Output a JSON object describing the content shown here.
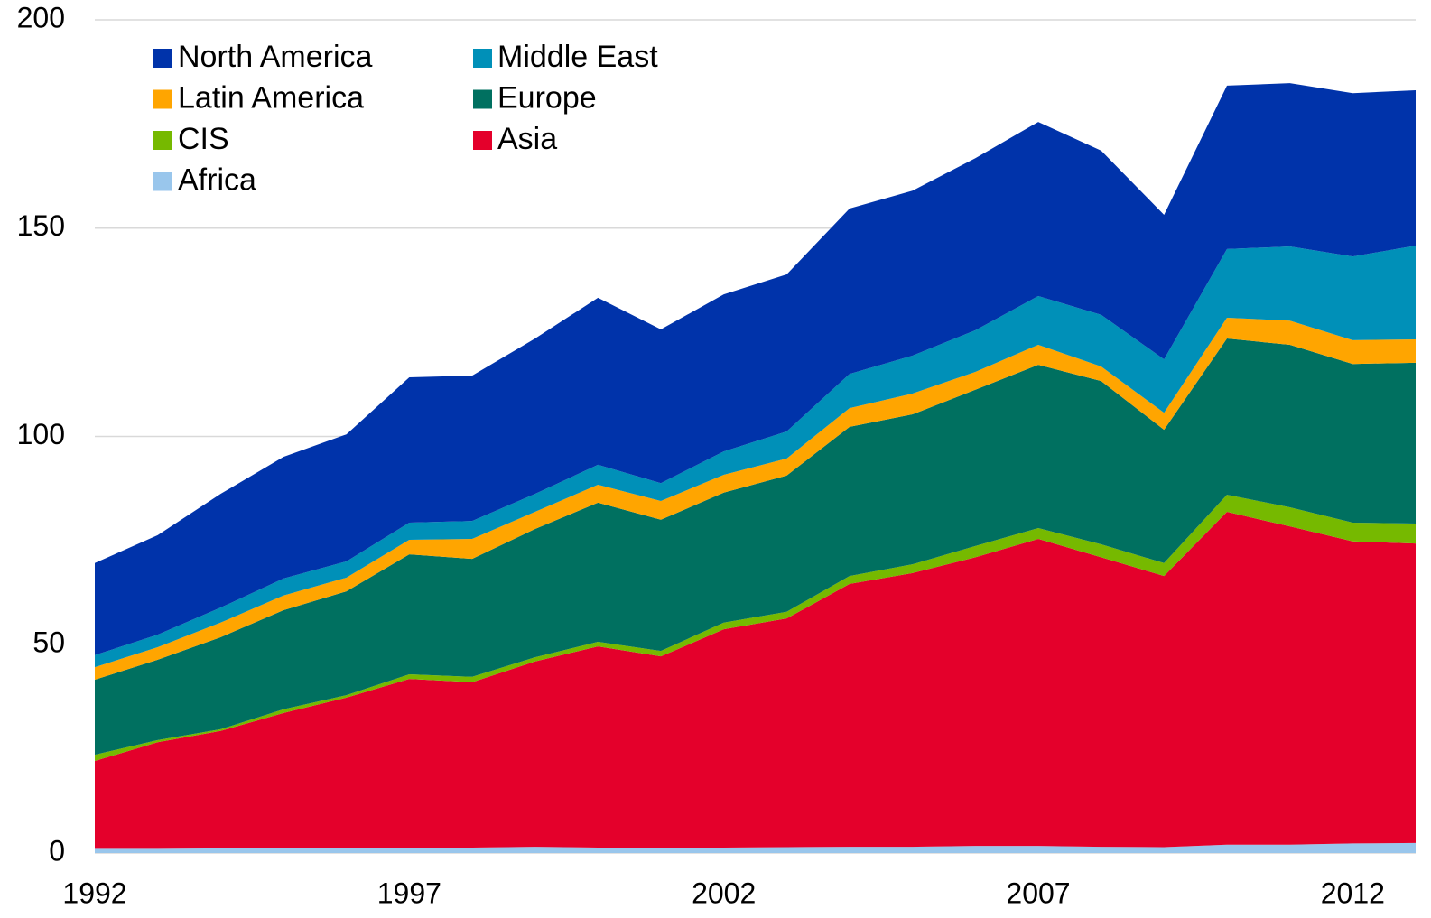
{
  "chart_data": {
    "type": "stacked_area",
    "x": [
      1992,
      1993,
      1994,
      1995,
      1996,
      1997,
      1998,
      1999,
      2000,
      2001,
      2002,
      2003,
      2004,
      2005,
      2006,
      2007,
      2008,
      2009,
      2010,
      2011,
      2012,
      2013
    ],
    "series": [
      {
        "name": "Africa",
        "color": "#99c6ec",
        "values": [
          1.0,
          1.0,
          1.1,
          1.1,
          1.2,
          1.3,
          1.3,
          1.5,
          1.3,
          1.3,
          1.3,
          1.4,
          1.5,
          1.5,
          1.7,
          1.7,
          1.5,
          1.4,
          2.0,
          2.0,
          2.3,
          2.4
        ]
      },
      {
        "name": "Asia",
        "color": "#e4002b",
        "values": [
          21.1,
          25.6,
          28.2,
          32.5,
          36.1,
          40.5,
          39.7,
          44.5,
          48.3,
          45.9,
          52.4,
          54.9,
          63.1,
          65.7,
          69.3,
          73.7,
          69.5,
          65.1,
          79.9,
          76.4,
          72.5,
          71.9
        ]
      },
      {
        "name": "CIS",
        "color": "#76b900",
        "values": [
          1.5,
          0.5,
          0.4,
          0.9,
          0.6,
          1.1,
          1.3,
          1.0,
          1.1,
          1.3,
          1.6,
          1.6,
          1.9,
          2.1,
          2.7,
          2.6,
          3.1,
          3.1,
          4.1,
          4.6,
          4.5,
          4.8
        ]
      },
      {
        "name": "Europe",
        "color": "#007060",
        "values": [
          18.0,
          19.3,
          22.1,
          23.8,
          24.9,
          28.8,
          28.3,
          30.8,
          33.4,
          31.5,
          31.2,
          32.7,
          35.8,
          36.0,
          37.5,
          39.2,
          39.2,
          32.0,
          37.5,
          39.0,
          38.1,
          38.6
        ]
      },
      {
        "name": "Latin America",
        "color": "#ffa500",
        "values": [
          3.0,
          3.0,
          3.5,
          3.5,
          3.3,
          3.5,
          4.8,
          4.1,
          4.3,
          4.5,
          4.3,
          4.1,
          4.5,
          5.0,
          4.3,
          4.8,
          3.5,
          4.1,
          5.0,
          5.8,
          5.7,
          5.6
        ]
      },
      {
        "name": "Middle East",
        "color": "#0090b8",
        "values": [
          2.9,
          3.0,
          3.6,
          4.1,
          3.9,
          4.1,
          4.3,
          4.3,
          4.8,
          4.3,
          5.6,
          6.5,
          8.2,
          9.1,
          10.0,
          11.7,
          12.4,
          12.8,
          16.5,
          17.8,
          20.1,
          22.5
        ]
      },
      {
        "name": "North America",
        "color": "#0033aa",
        "values": [
          22.1,
          23.9,
          27.3,
          29.2,
          30.5,
          34.9,
          34.9,
          37.3,
          40.1,
          36.9,
          37.7,
          37.7,
          39.7,
          39.6,
          41.3,
          41.8,
          39.4,
          34.7,
          39.2,
          39.2,
          39.2,
          37.3
        ]
      }
    ],
    "xlim": [
      1992,
      2013
    ],
    "xticks": [
      1992,
      1997,
      2002,
      2007,
      2012
    ],
    "ylim": [
      0,
      200
    ],
    "yticks": [
      0,
      50,
      100,
      150,
      200
    ],
    "grid": true,
    "legend": "top-left"
  }
}
